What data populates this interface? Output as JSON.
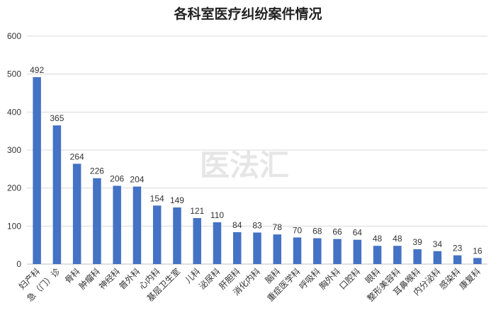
{
  "watermark": "医法汇",
  "chart_data": {
    "type": "bar",
    "title": "各科室医疗纠纷案件情况",
    "xlabel": "",
    "ylabel": "",
    "ylim": [
      0,
      600
    ],
    "yticks": [
      0,
      100,
      200,
      300,
      400,
      500,
      600
    ],
    "grid": true,
    "legend": "none",
    "bar_color": "#4472C4",
    "categories": [
      "妇产科",
      "急（门）诊",
      "骨科",
      "肿瘤科",
      "神经科",
      "普外科",
      "心内科",
      "基层卫生室",
      "儿科",
      "泌尿科",
      "肝胆科",
      "消化内科",
      "脑科",
      "重症医学科",
      "呼吸科",
      "胸外科",
      "口腔科",
      "眼科",
      "整形美容科",
      "耳鼻喉科",
      "内分泌科",
      "感染科",
      "康复科"
    ],
    "values": [
      492,
      365,
      264,
      226,
      206,
      204,
      154,
      149,
      121,
      110,
      84,
      83,
      78,
      70,
      68,
      66,
      64,
      48,
      48,
      39,
      34,
      23,
      16
    ]
  }
}
